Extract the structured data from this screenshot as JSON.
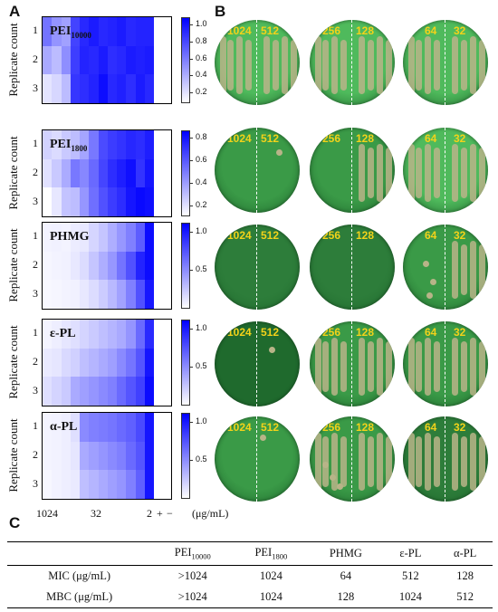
{
  "panels": {
    "a": "A",
    "b": "B",
    "c": "C"
  },
  "ylabel": "Replicate count",
  "replicates": [
    "1",
    "2",
    "3"
  ],
  "heatmaps": [
    {
      "name": "PEI",
      "sub": "10000",
      "colorbar_ticks": [
        "1.0",
        "0.8",
        "0.6",
        "0.4",
        "0.2"
      ],
      "chart_data": {
        "type": "heatmap",
        "rows": 3,
        "cols": 12,
        "vmin": 0.1,
        "vmax": 1.05,
        "values": [
          [
            0.62,
            0.5,
            0.45,
            0.8,
            0.9,
            0.95,
            0.9,
            0.92,
            0.95,
            0.9,
            0.92,
            0.92
          ],
          [
            0.42,
            0.35,
            0.52,
            0.82,
            0.92,
            0.9,
            0.95,
            0.88,
            0.9,
            0.95,
            0.93,
            0.95
          ],
          [
            0.2,
            0.25,
            0.35,
            0.85,
            0.88,
            0.92,
            1.0,
            0.9,
            0.93,
            0.88,
            0.95,
            0.9
          ]
        ]
      }
    },
    {
      "name": "PEI",
      "sub": "1800",
      "colorbar_ticks": [
        "0.8",
        "0.6",
        "0.4",
        "0.2"
      ],
      "chart_data": {
        "type": "heatmap",
        "rows": 3,
        "cols": 12,
        "vmin": 0.1,
        "vmax": 0.95,
        "values": [
          [
            0.25,
            0.22,
            0.28,
            0.32,
            0.4,
            0.55,
            0.7,
            0.75,
            0.78,
            0.82,
            0.8,
            0.85
          ],
          [
            0.2,
            0.28,
            0.38,
            0.55,
            0.5,
            0.6,
            0.72,
            0.8,
            0.85,
            0.9,
            0.78,
            0.88
          ],
          [
            0.1,
            0.18,
            0.3,
            0.32,
            0.45,
            0.58,
            0.68,
            0.75,
            0.8,
            0.88,
            0.92,
            0.9
          ]
        ]
      }
    },
    {
      "name": "PHMG",
      "sub": "",
      "colorbar_ticks": [
        "1.0",
        "0.5"
      ],
      "chart_data": {
        "type": "heatmap",
        "rows": 3,
        "cols": 12,
        "vmin": 0.0,
        "vmax": 1.1,
        "values": [
          [
            0.05,
            0.06,
            0.05,
            0.08,
            0.1,
            0.18,
            0.25,
            0.35,
            0.45,
            0.55,
            0.7,
            1.05
          ],
          [
            0.04,
            0.05,
            0.06,
            0.1,
            0.15,
            0.25,
            0.35,
            0.45,
            0.6,
            0.75,
            0.95,
            1.05
          ],
          [
            0.03,
            0.04,
            0.05,
            0.06,
            0.1,
            0.15,
            0.22,
            0.3,
            0.4,
            0.55,
            0.75,
            1.0
          ]
        ]
      }
    },
    {
      "name": "ε-PL",
      "sub": "",
      "colorbar_ticks": [
        "1.0",
        "0.5"
      ],
      "chart_data": {
        "type": "heatmap",
        "rows": 3,
        "cols": 12,
        "vmin": 0.0,
        "vmax": 1.2,
        "values": [
          [
            0.05,
            0.08,
            0.12,
            0.15,
            0.2,
            0.25,
            0.3,
            0.35,
            0.4,
            0.5,
            0.7,
            1.0
          ],
          [
            0.1,
            0.12,
            0.18,
            0.22,
            0.3,
            0.35,
            0.4,
            0.45,
            0.55,
            0.65,
            0.8,
            1.1
          ],
          [
            0.15,
            0.2,
            0.25,
            0.4,
            0.45,
            0.5,
            0.55,
            0.6,
            0.7,
            0.8,
            0.9,
            1.15
          ]
        ]
      }
    },
    {
      "name": "α-PL",
      "sub": "",
      "colorbar_ticks": [
        "1.0",
        "0.5"
      ],
      "chart_data": {
        "type": "heatmap",
        "rows": 3,
        "cols": 12,
        "vmin": 0.0,
        "vmax": 1.2,
        "values": [
          [
            0.05,
            0.06,
            0.08,
            0.15,
            0.55,
            0.6,
            0.62,
            0.65,
            0.7,
            0.75,
            0.85,
            1.1
          ],
          [
            0.05,
            0.06,
            0.08,
            0.12,
            0.4,
            0.45,
            0.5,
            0.55,
            0.6,
            0.7,
            0.8,
            1.1
          ],
          [
            0.04,
            0.06,
            0.08,
            0.1,
            0.3,
            0.35,
            0.4,
            0.45,
            0.5,
            0.6,
            0.75,
            1.1
          ]
        ]
      }
    }
  ],
  "x_ticks": {
    "t1024": "1024",
    "t32": "32",
    "t2": "2",
    "plus": "+",
    "minus": "−"
  },
  "units": "(μg/mL)",
  "dish_pairs": [
    [
      "1024",
      "512"
    ],
    [
      "256",
      "128"
    ],
    [
      "64",
      "32"
    ]
  ],
  "dish_colors": {
    "bright": "#4fba5c",
    "medium": "#3a9a47",
    "dark": "#2d7d3a",
    "darkest": "#1f6a2d",
    "streak": "#b8b488",
    "label": "#f2d21a"
  },
  "table": {
    "headers": [
      "",
      "PEI",
      "PEI",
      "PHMG",
      "ε-PL",
      "α-PL"
    ],
    "header_subs": [
      "",
      "10000",
      "1800",
      "",
      "",
      ""
    ],
    "rows": [
      {
        "label": "MIC (μg/mL)",
        "values": [
          ">1024",
          "1024",
          "64",
          "512",
          "128"
        ]
      },
      {
        "label": "MBC (μg/mL)",
        "values": [
          ">1024",
          "1024",
          "128",
          "1024",
          "512"
        ]
      }
    ]
  }
}
